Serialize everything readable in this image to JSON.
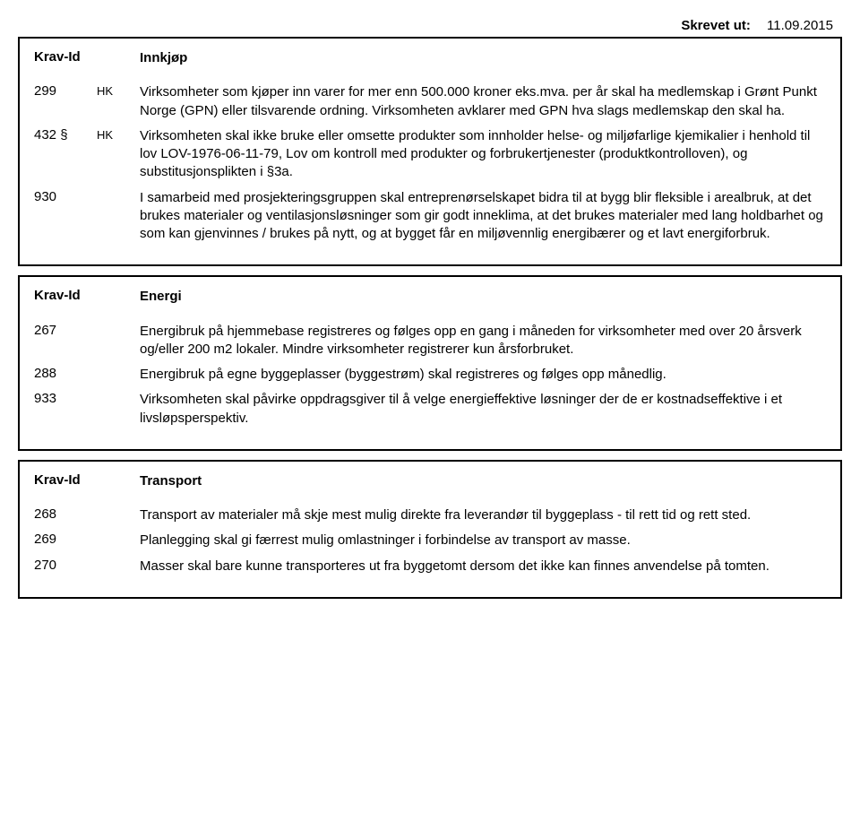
{
  "header": {
    "printed_label": "Skrevet ut:",
    "printed_date": "11.09.2015"
  },
  "sections": [
    {
      "krav_label": "Krav-Id",
      "title": "Innkjøp",
      "rows": [
        {
          "id": "299",
          "suffix": "",
          "tag": "HK",
          "text": "Virksomheter som kjøper inn varer for mer enn 500.000 kroner eks.mva. per år skal ha medlemskap i Grønt Punkt Norge (GPN) eller tilsvarende ordning. Virksomheten avklarer med GPN hva slags medlemskap den skal ha."
        },
        {
          "id": "432",
          "suffix": "§",
          "tag": "HK",
          "text": "Virksomheten skal ikke bruke eller omsette produkter som innholder helse- og miljøfarlige kjemikalier i henhold til lov LOV-1976-06-11-79, Lov om kontroll med produkter og forbrukertjenester (produktkontrolloven), og substitusjonsplikten i §3a."
        },
        {
          "id": "930",
          "suffix": "",
          "tag": "",
          "text": "I samarbeid med prosjekteringsgruppen skal entreprenørselskapet bidra til at bygg blir fleksible i arealbruk, at det brukes materialer og ventilasjonsløsninger som gir godt inneklima, at det brukes materialer med lang holdbarhet og som kan gjenvinnes / brukes på nytt, og at bygget får en miljøvennlig energibærer og et lavt energiforbruk."
        }
      ]
    },
    {
      "krav_label": "Krav-Id",
      "title": "Energi",
      "rows": [
        {
          "id": "267",
          "suffix": "",
          "tag": "",
          "text": "Energibruk på hjemmebase registreres og følges opp en gang i måneden for virksomheter med over 20 årsverk og/eller 200 m2 lokaler. Mindre virksomheter registrerer kun årsforbruket."
        },
        {
          "id": "288",
          "suffix": "",
          "tag": "",
          "text": "Energibruk på egne byggeplasser (byggestrøm) skal registreres og følges opp månedlig."
        },
        {
          "id": "933",
          "suffix": "",
          "tag": "",
          "text": "Virksomheten skal påvirke oppdragsgiver til å velge energieffektive løsninger der de er kostnadseffektive i et livsløpsperspektiv."
        }
      ]
    },
    {
      "krav_label": "Krav-Id",
      "title": "Transport",
      "rows": [
        {
          "id": "268",
          "suffix": "",
          "tag": "",
          "text": "Transport av materialer må skje mest mulig direkte fra leverandør til byggeplass - til rett tid og rett sted."
        },
        {
          "id": "269",
          "suffix": "",
          "tag": "",
          "text": "Planlegging skal gi færrest mulig omlastninger i forbindelse av transport av masse."
        },
        {
          "id": "270",
          "suffix": "",
          "tag": "",
          "text": "Masser skal bare kunne transporteres ut fra byggetomt dersom det ikke kan finnes anvendelse på tomten."
        }
      ]
    }
  ]
}
